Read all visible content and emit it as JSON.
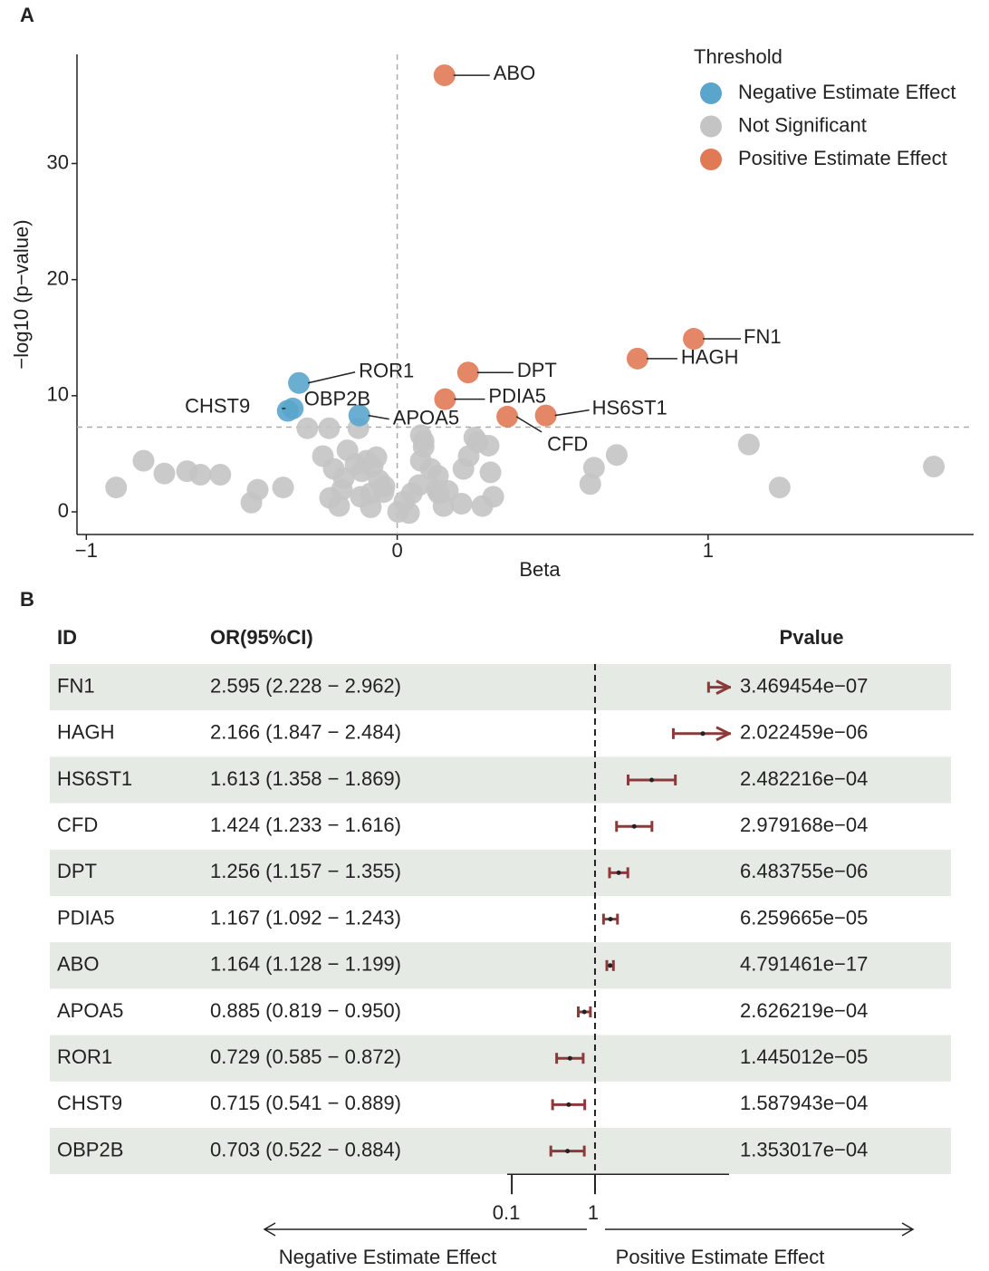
{
  "chart_data": [
    {
      "type": "scatter",
      "panel": "A",
      "x_label": "Beta",
      "y_label": "−log10 (p−value)",
      "xlim": [
        -1.03,
        1.854
      ],
      "ylim": [
        -1.95,
        39.4
      ],
      "xticks": [
        {
          "value": -1,
          "label": "−1"
        },
        0,
        1
      ],
      "yticks": [
        0,
        10,
        20,
        30
      ],
      "vline": 0,
      "hline": 7.3,
      "legend_title": "Threshold",
      "legend": "top-right",
      "series": [
        {
          "name": "Negative Estimate Effect",
          "color": "#5aa5cc",
          "x": [
            -0.316,
            -0.336,
            -0.352,
            -0.122
          ],
          "values": [
            11.1,
            8.9,
            8.7,
            8.3
          ],
          "labels": [
            "ROR1",
            "CHST9",
            "OBP2B",
            "APOA5"
          ]
        },
        {
          "name": "Not Significant",
          "color": "#c4c4c4",
          "x": [
            -0.904,
            -0.816,
            -0.749,
            -0.676,
            -0.633,
            -0.569,
            -0.469,
            -0.449,
            -0.367,
            -0.289,
            -0.219,
            -0.239,
            -0.16,
            -0.125,
            -0.216,
            -0.187,
            -0.178,
            -0.204,
            -0.172,
            -0.134,
            -0.114,
            -0.099,
            -0.085,
            -0.079,
            -0.058,
            -0.044,
            -0.085,
            -0.117,
            -0.067,
            -0.041,
            0.003,
            0.038,
            0.023,
            0.047,
            0.07,
            0.076,
            0.085,
            0.076,
            0.085,
            0.108,
            0.131,
            0.134,
            0.149,
            0.128,
            0.163,
            0.207,
            0.213,
            0.23,
            0.248,
            0.259,
            0.274,
            0.294,
            0.3,
            0.309,
            0.621,
            0.633,
            0.706,
            1.131,
            1.23,
            1.726
          ],
          "values": [
            2.1,
            4.4,
            3.3,
            3.5,
            3.2,
            3.2,
            0.8,
            1.9,
            2.1,
            7.2,
            7.2,
            4.8,
            5.3,
            7.2,
            1.2,
            0.5,
            1.9,
            3.7,
            2.9,
            4.1,
            3.5,
            4.4,
            1.6,
            3.9,
            2.7,
            1.7,
            0.4,
            1.3,
            4.7,
            2.2,
            0.0,
            -0.1,
            0.9,
            1.6,
            2.3,
            6.6,
            6.1,
            4.4,
            5.6,
            3.7,
            3.1,
            1.6,
            0.5,
            1.9,
            1.8,
            0.7,
            3.7,
            4.8,
            6.4,
            6.0,
            0.5,
            5.7,
            3.4,
            1.3,
            2.4,
            3.8,
            4.9,
            5.8,
            2.1,
            3.9
          ]
        },
        {
          "name": "Positive Estimate Effect",
          "color": "#e07a55",
          "x": [
            0.152,
            0.954,
            0.773,
            0.228,
            0.154,
            0.478,
            0.354
          ],
          "values": [
            37.6,
            14.9,
            13.2,
            12.0,
            9.7,
            8.3,
            8.2
          ],
          "labels": [
            "ABO",
            "FN1",
            "HAGH",
            "DPT",
            "PDIA5",
            "HS6ST1",
            "CFD"
          ]
        }
      ]
    },
    {
      "type": "forest",
      "panel": "B",
      "columns": [
        "ID",
        "OR(95%CI)",
        "Pvalue"
      ],
      "categories": [
        "FN1",
        "HAGH",
        "HS6ST1",
        "CFD",
        "DPT",
        "PDIA5",
        "ABO",
        "APOA5",
        "ROR1",
        "CHST9",
        "OBP2B"
      ],
      "values": [
        2.595,
        2.166,
        1.613,
        1.424,
        1.256,
        1.167,
        1.164,
        0.885,
        0.729,
        0.715,
        0.703
      ],
      "lower": [
        2.228,
        1.847,
        1.358,
        1.233,
        1.157,
        1.092,
        1.128,
        0.819,
        0.585,
        0.541,
        0.522
      ],
      "upper": [
        2.962,
        2.484,
        1.869,
        1.616,
        1.355,
        1.243,
        1.199,
        0.95,
        0.872,
        0.889,
        0.884
      ],
      "value_labels": [
        "2.595 (2.228 − 2.962)",
        "2.166 (1.847 − 2.484)",
        "1.613 (1.358 − 1.869)",
        "1.424 (1.233 − 1.616)",
        "1.256 (1.157 − 1.355)",
        "1.167 (1.092 − 1.243)",
        "1.164 (1.128 − 1.199)",
        "0.885 (0.819 − 0.950)",
        "0.729 (0.585 − 0.872)",
        "0.715 (0.541 − 0.889)",
        "0.703 (0.522 − 0.884)"
      ],
      "pvalues": [
        "3.469454e−07",
        "2.022459e−06",
        "2.482216e−04",
        "2.979168e−04",
        "6.483755e−06",
        "6.259665e−05",
        "4.791461e−17",
        "2.626219e−04",
        "1.445012e−05",
        "1.587943e−04",
        "1.353017e−04"
      ],
      "xlim": [
        0.05,
        2.45
      ],
      "xticks": [
        0.1,
        1
      ],
      "ref_line": 1,
      "color": "#8b3a3a",
      "row_shading": "#e5eae5",
      "direction_labels": [
        "Negative Estimate Effect",
        "Positive Estimate Effect"
      ]
    }
  ]
}
